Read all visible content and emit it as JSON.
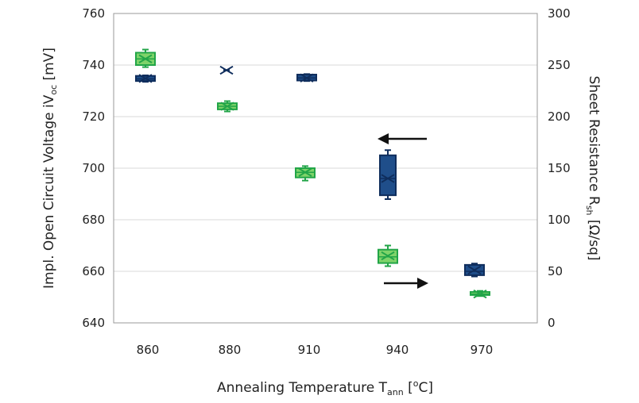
{
  "chart_data": {
    "type": "box",
    "categories": [
      "860",
      "880",
      "910",
      "940",
      "970"
    ],
    "xlabel": {
      "main": "Annealing Temperature T",
      "sub": "ann",
      "post": " [",
      "sup": "o",
      "tail": "C]"
    },
    "ylabel_left": {
      "main": "Impl. Open Circuit Voltage  iV",
      "sub": "oc",
      "tail": " [mV]"
    },
    "ylabel_right": {
      "main": "Sheet Resistance R",
      "sub": "sh",
      "tail": " [Ω/sq]"
    },
    "y_left": {
      "min": 640,
      "max": 760,
      "ticks": [
        "640",
        "660",
        "680",
        "700",
        "720",
        "740",
        "760"
      ]
    },
    "y_right": {
      "min": 0,
      "max": 300,
      "ticks": [
        "0",
        "50",
        "100",
        "150",
        "200",
        "250",
        "300"
      ]
    },
    "grid": true,
    "series": [
      {
        "name": "Implied Voc",
        "axis": "left",
        "color": "#1f3d7a",
        "boxes": [
          {
            "category": "860",
            "min": 733.5,
            "q1": 733.8,
            "median": 734.6,
            "q3": 735.8,
            "max": 736.0,
            "mean": 734.8
          },
          {
            "category": "880",
            "min": 738.0,
            "q1": 738.0,
            "median": 738.0,
            "q3": 738.0,
            "max": 738.0,
            "mean": 738.0
          },
          {
            "category": "910",
            "min": 733.8,
            "q1": 734.0,
            "median": 735.0,
            "q3": 736.3,
            "max": 736.5,
            "mean": 735.0
          },
          {
            "category": "940",
            "min": 688.0,
            "q1": 689.5,
            "median": 696.0,
            "q3": 705.0,
            "max": 707.0,
            "mean": 696.0
          },
          {
            "category": "970",
            "min": 658.0,
            "q1": 658.5,
            "median": 660.0,
            "q3": 662.5,
            "max": 663.0,
            "mean": 660.5
          }
        ]
      },
      {
        "name": "Sheet Resistance",
        "axis": "right",
        "color": "#3fbf5f",
        "boxes": [
          {
            "category": "860",
            "min": 248,
            "q1": 250,
            "median": 256,
            "q3": 262,
            "max": 265,
            "mean": 256
          },
          {
            "category": "880",
            "min": 205,
            "q1": 207,
            "median": 210,
            "q3": 213,
            "max": 215,
            "mean": 210
          },
          {
            "category": "910",
            "min": 138,
            "q1": 141,
            "median": 146,
            "q3": 150,
            "max": 152,
            "mean": 146
          },
          {
            "category": "940",
            "min": 55,
            "q1": 58,
            "median": 64,
            "q3": 71,
            "max": 75,
            "mean": 65
          },
          {
            "category": "970",
            "min": 26,
            "q1": 27,
            "median": 28,
            "q3": 30,
            "max": 31,
            "mean": 28
          }
        ]
      }
    ],
    "annotations": [
      {
        "type": "arrow",
        "direction": "left",
        "series": "Implied Voc"
      },
      {
        "type": "arrow",
        "direction": "right",
        "series": "Sheet Resistance"
      }
    ]
  }
}
